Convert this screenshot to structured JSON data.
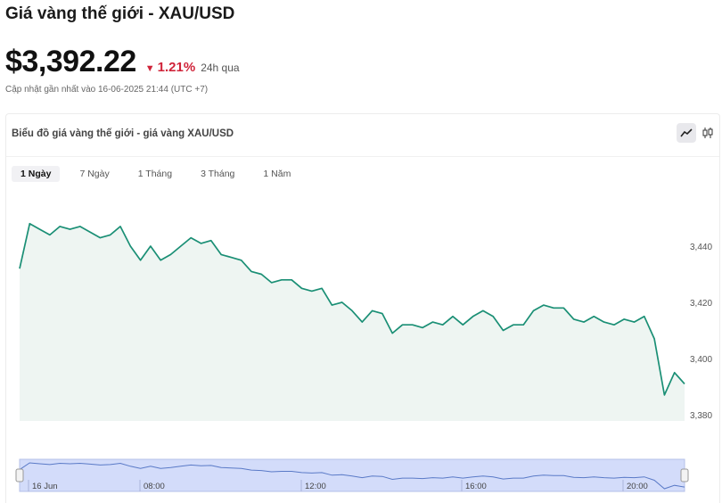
{
  "header": {
    "title": "Giá vàng thế giới - XAU/USD",
    "price": "$3,392.22",
    "change": "1.21%",
    "change_period": "24h qua",
    "updated": "Cập nhật gần nhất vào 16-06-2025 21:44 (UTC +7)"
  },
  "card": {
    "title": "Biểu đồ giá vàng thế giới - giá vàng XAU/USD",
    "chart_types": [
      {
        "name": "line-chart-icon",
        "active": true
      },
      {
        "name": "candlestick-icon",
        "active": false
      }
    ],
    "tabs": [
      {
        "label": "1 Ngày",
        "active": true
      },
      {
        "label": "7 Ngày",
        "active": false
      },
      {
        "label": "1 Tháng",
        "active": false
      },
      {
        "label": "3 Tháng",
        "active": false
      },
      {
        "label": "1 Năm",
        "active": false
      }
    ]
  },
  "colors": {
    "line": "#1a8f75",
    "area": "#eef5f2",
    "down": "#d0243a",
    "navigator": "#d3dcfa"
  },
  "chart_data": {
    "type": "area",
    "title": "",
    "xlabel": "",
    "ylabel": "",
    "ylim": [
      3378,
      3462
    ],
    "y_ticks": [
      3380,
      3400,
      3420,
      3440
    ],
    "y_tick_labels": [
      "3,380",
      "3,400",
      "3,420",
      "3,440"
    ],
    "navigator_labels": [
      "16 Jun",
      "08:00",
      "12:00",
      "16:00",
      "20:00"
    ],
    "series": [
      {
        "values": [
          3432,
          3448,
          3446,
          3444,
          3447,
          3446,
          3447,
          3445,
          3443,
          3444,
          3447,
          3440,
          3435,
          3440,
          3435,
          3437,
          3440,
          3443,
          3441,
          3442,
          3437,
          3436,
          3435,
          3431,
          3430,
          3427,
          3428,
          3428,
          3425,
          3424,
          3425,
          3419,
          3420,
          3417,
          3413,
          3417,
          3416,
          3409,
          3412,
          3412,
          3411,
          3413,
          3412,
          3415,
          3412,
          3415,
          3417,
          3415,
          3410,
          3412,
          3412,
          3417,
          3419,
          3418,
          3418,
          3414,
          3413,
          3415,
          3413,
          3412,
          3414,
          3413,
          3415,
          3407,
          3387,
          3395,
          3391
        ]
      }
    ]
  }
}
